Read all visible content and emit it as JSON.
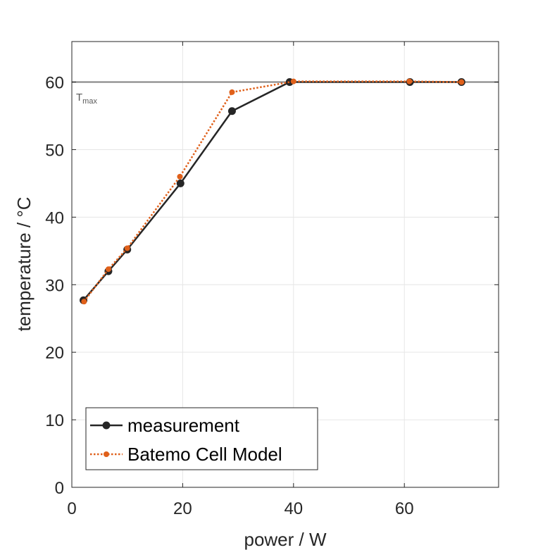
{
  "chart_data": {
    "type": "line",
    "xlabel": "power / W",
    "ylabel": "temperature / °C",
    "xlim": [
      0,
      77
    ],
    "ylim": [
      0,
      66
    ],
    "xticks": [
      0,
      20,
      40,
      60
    ],
    "yticks": [
      0,
      10,
      20,
      30,
      40,
      50,
      60
    ],
    "grid": true,
    "legend_position": "bottom-left",
    "reference_line": {
      "y": 60,
      "label_main": "T",
      "label_sub": "max",
      "color": "#808080"
    },
    "series": [
      {
        "name": "measurement",
        "color": "#262626",
        "line_style": "solid",
        "x": [
          2.1,
          6.6,
          10.0,
          19.6,
          28.9,
          39.3,
          61.0,
          70.3
        ],
        "y": [
          27.7,
          32.0,
          35.2,
          45.0,
          55.7,
          60.0,
          60.0,
          60.0
        ]
      },
      {
        "name": "Batemo Cell Model",
        "color": "#e0601a",
        "line_style": "dotted",
        "x": [
          2.2,
          6.6,
          10.0,
          19.5,
          28.9,
          40.0,
          60.9,
          70.3
        ],
        "y": [
          27.5,
          32.3,
          35.4,
          46.0,
          58.5,
          60.1,
          60.1,
          60.0
        ]
      }
    ]
  }
}
